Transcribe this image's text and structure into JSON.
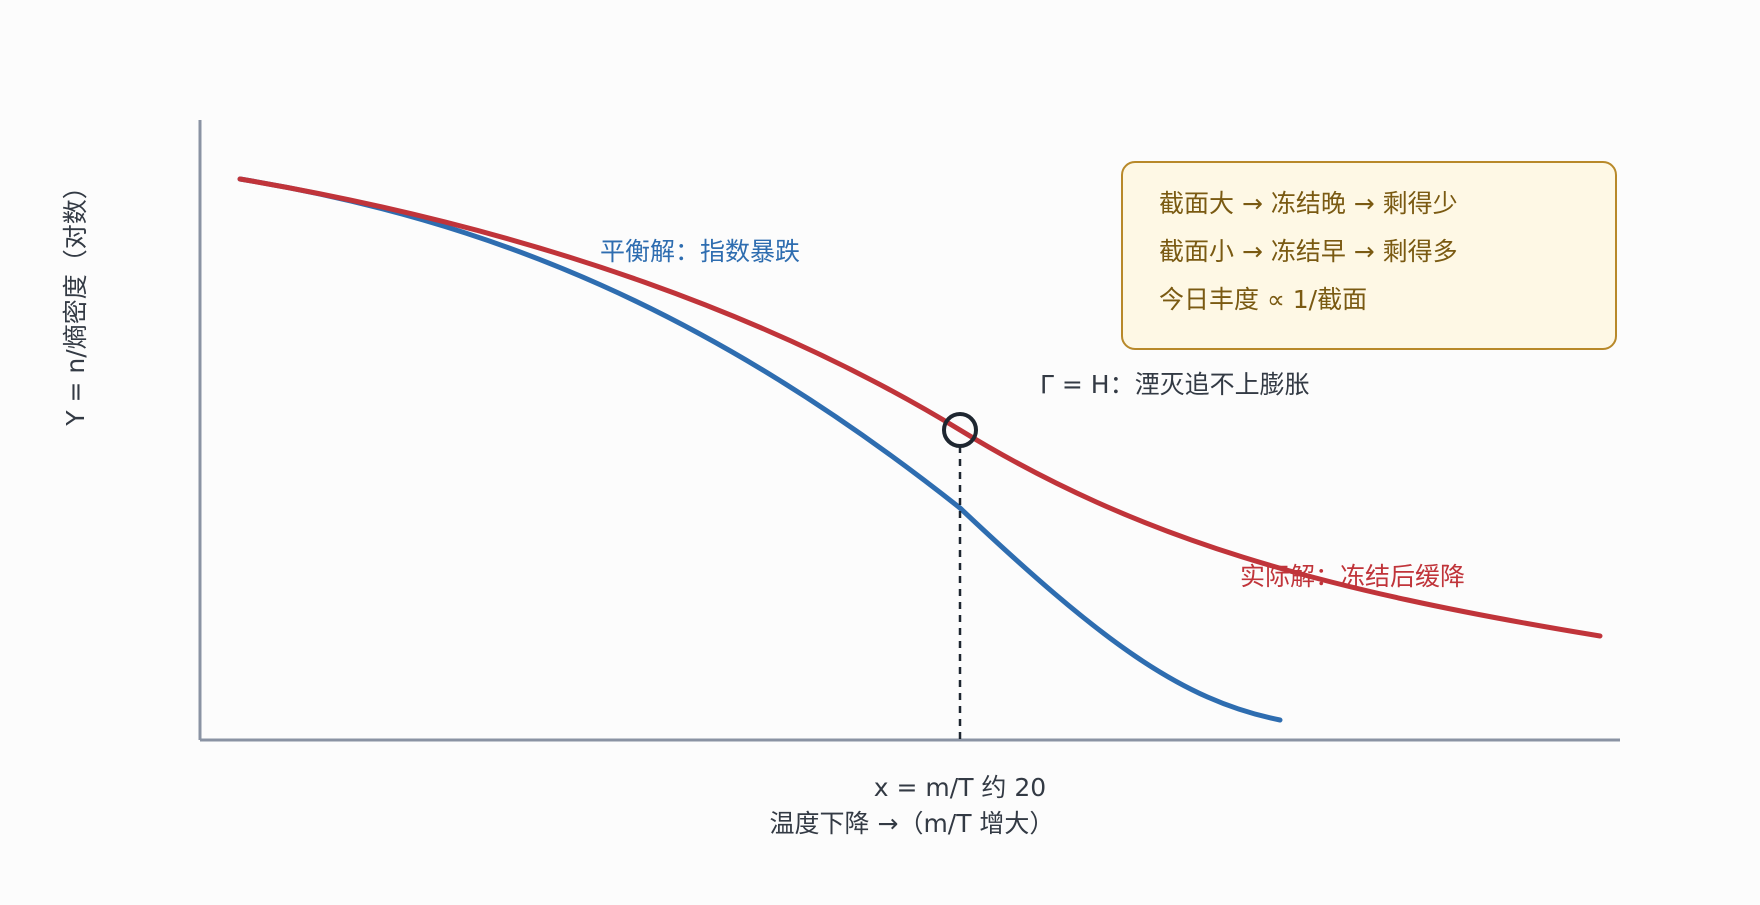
{
  "axes": {
    "ylabel": "Y = n/熵密度（对数）",
    "xlabel": "温度下降 →（m/T 增大）"
  },
  "curves": {
    "equilibrium": {
      "label": "平衡解：指数暴跌",
      "color": "#2e6db0"
    },
    "actual": {
      "label": "实际解：冻结后缓降",
      "color": "#c0343a"
    }
  },
  "annotations": {
    "freeze_point_label": "Γ = H：湮灭追不上膨胀",
    "freeze_x_label": "x = m/T 约 20"
  },
  "info_box": {
    "lines": [
      "截面大 → 冻结晚 → 剩得少",
      "截面小 → 冻结早 → 剩得多",
      "今日丰度 ∝ 1/截面"
    ]
  },
  "colors": {
    "axis": "#8a93a3",
    "text_dark": "#333a44",
    "marker": "#1e2630",
    "box_fill": "#fef8e5",
    "box_border": "#b8892a",
    "box_text": "#7a5a12"
  }
}
